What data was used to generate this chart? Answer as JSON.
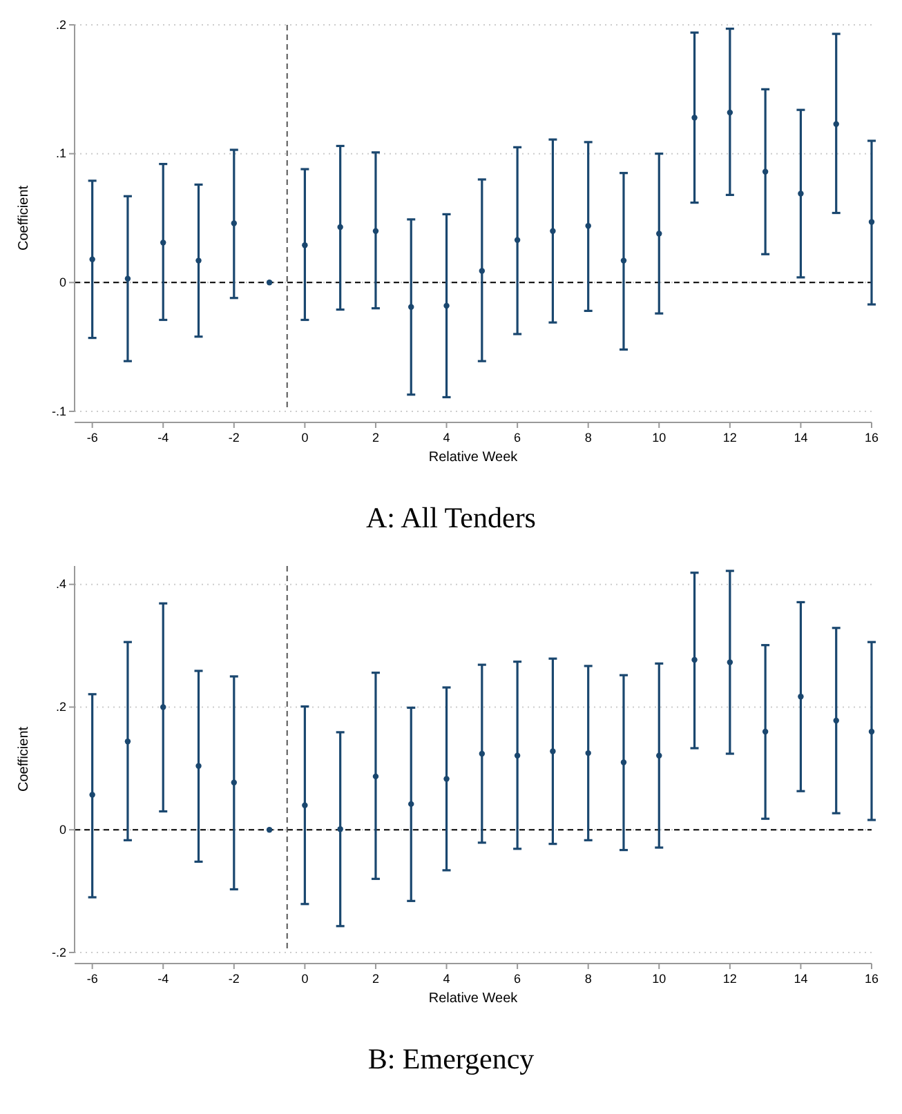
{
  "chart_data": [
    {
      "type": "scatter",
      "title": "A: All Tenders",
      "xlabel": "Relative Week",
      "ylabel": "Coefficient",
      "x": [
        -6,
        -5,
        -4,
        -3,
        -2,
        -1,
        0,
        1,
        2,
        3,
        4,
        5,
        6,
        7,
        8,
        9,
        10,
        11,
        12,
        13,
        14,
        15,
        16
      ],
      "series": [
        {
          "color": "#1a476f",
          "values": [
            0.018,
            0.003,
            0.031,
            0.017,
            0.046,
            0,
            0.029,
            0.043,
            0.04,
            -0.019,
            -0.018,
            0.009,
            0.033,
            0.04,
            0.044,
            0.017,
            0.038,
            0.128,
            0.132,
            0.086,
            0.069,
            0.123,
            0.047
          ],
          "errors": [
            [
              -0.043,
              0.079
            ],
            [
              -0.061,
              0.067
            ],
            [
              -0.029,
              0.092
            ],
            [
              -0.042,
              0.076
            ],
            [
              -0.012,
              0.103
            ],
            null,
            [
              -0.029,
              0.088
            ],
            [
              -0.021,
              0.106
            ],
            [
              -0.02,
              0.101
            ],
            [
              -0.087,
              0.049
            ],
            [
              -0.089,
              0.053
            ],
            [
              -0.061,
              0.08
            ],
            [
              -0.04,
              0.105
            ],
            [
              -0.031,
              0.111
            ],
            [
              -0.022,
              0.109
            ],
            [
              -0.052,
              0.085
            ],
            [
              -0.024,
              0.1
            ],
            [
              0.062,
              0.194
            ],
            [
              0.068,
              0.197
            ],
            [
              0.022,
              0.15
            ],
            [
              0.004,
              0.134
            ],
            [
              0.054,
              0.193
            ],
            [
              -0.017,
              0.11
            ]
          ]
        }
      ],
      "marker": "circle",
      "xlim": [
        -6.5,
        16
      ],
      "xticks": [
        -6,
        -4,
        -2,
        0,
        2,
        4,
        6,
        8,
        10,
        12,
        14,
        16
      ],
      "ylim": [
        -0.1,
        0.2
      ],
      "yticks": [
        {
          "value": -0.1,
          "label": "-.1"
        },
        0,
        {
          "value": 0.1,
          "label": ".1"
        },
        {
          "value": 0.2,
          "label": ".2"
        }
      ],
      "grid": "y",
      "ref_lines": [
        {
          "axis": "y",
          "value": 0,
          "color": "#000000",
          "line_style": "dashed"
        },
        {
          "axis": "x",
          "value": -0.5,
          "color": "#555555",
          "line_style": "dashed"
        }
      ]
    },
    {
      "type": "scatter",
      "title": "B: Emergency",
      "xlabel": "Relative Week",
      "ylabel": "Coefficient",
      "x": [
        -6,
        -5,
        -4,
        -3,
        -2,
        -1,
        0,
        1,
        2,
        3,
        4,
        5,
        6,
        7,
        8,
        9,
        10,
        11,
        12,
        13,
        14,
        15,
        16
      ],
      "series": [
        {
          "color": "#1a476f",
          "values": [
            0.057,
            0.144,
            0.2,
            0.104,
            0.077,
            0,
            0.04,
            0.001,
            0.087,
            0.042,
            0.083,
            0.124,
            0.121,
            0.128,
            0.125,
            0.11,
            0.121,
            0.277,
            0.273,
            0.16,
            0.217,
            0.178,
            0.16
          ],
          "errors": [
            [
              -0.11,
              0.221
            ],
            [
              -0.017,
              0.306
            ],
            [
              0.03,
              0.369
            ],
            [
              -0.052,
              0.259
            ],
            [
              -0.097,
              0.25
            ],
            null,
            [
              -0.121,
              0.201
            ],
            [
              -0.157,
              0.159
            ],
            [
              -0.08,
              0.256
            ],
            [
              -0.116,
              0.199
            ],
            [
              -0.066,
              0.232
            ],
            [
              -0.021,
              0.269
            ],
            [
              -0.031,
              0.274
            ],
            [
              -0.023,
              0.279
            ],
            [
              -0.017,
              0.267
            ],
            [
              -0.033,
              0.252
            ],
            [
              -0.029,
              0.271
            ],
            [
              0.133,
              0.419
            ],
            [
              0.124,
              0.422
            ],
            [
              0.018,
              0.301
            ],
            [
              0.063,
              0.371
            ],
            [
              0.027,
              0.329
            ],
            [
              0.016,
              0.306
            ]
          ]
        }
      ],
      "marker": "circle",
      "xlim": [
        -6.5,
        16
      ],
      "xticks": [
        -6,
        -4,
        -2,
        0,
        2,
        4,
        6,
        8,
        10,
        12,
        14,
        16
      ],
      "ylim": [
        -0.2,
        0.43
      ],
      "yticks": [
        {
          "value": -0.2,
          "label": "-.2"
        },
        0,
        {
          "value": 0.2,
          "label": ".2"
        },
        {
          "value": 0.4,
          "label": ".4"
        }
      ],
      "grid": "y",
      "ref_lines": [
        {
          "axis": "y",
          "value": 0,
          "color": "#000000",
          "line_style": "dashed"
        },
        {
          "axis": "x",
          "value": -0.5,
          "color": "#555555",
          "line_style": "dashed"
        }
      ]
    }
  ]
}
